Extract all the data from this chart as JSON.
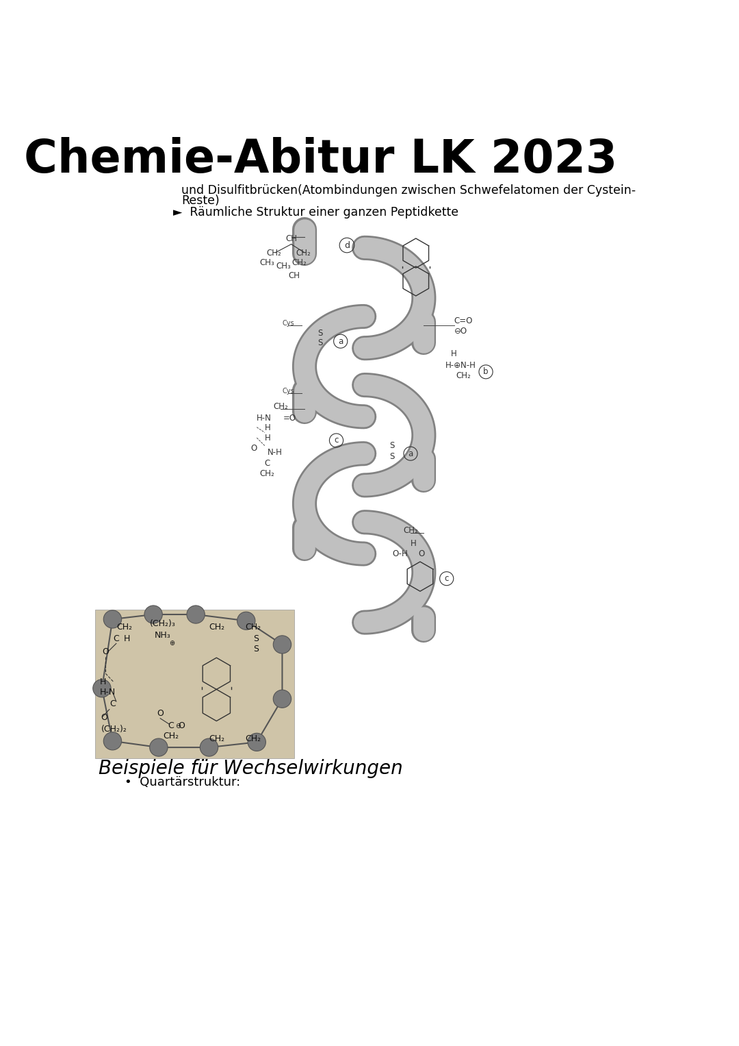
{
  "title": "Chemie-Abitur LK 2023",
  "subtitle_line1": "und Disulfitbrücken(Atombindungen zwischen Schwefelatomen der Cystein-",
  "subtitle_line2": "Reste)",
  "bullet1": "►  Räumliche Struktur einer ganzen Peptidkette",
  "handwritten_label": "Beispiele für Wechselwirkungen",
  "bullet2": "•  Quartärstruktur:",
  "bg_color": "#ffffff",
  "text_color": "#000000",
  "diagram_bg": "#cfc4a8",
  "title_font_size": 48,
  "body_font_size": 12.5,
  "helix_gray": "#c0c0c0",
  "helix_dark": "#828282",
  "helix_lw": 22,
  "helix_lw_dark": 26
}
